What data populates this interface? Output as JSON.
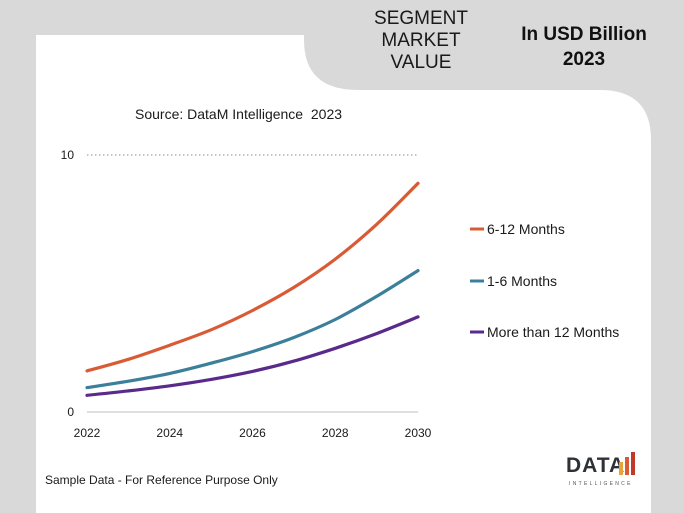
{
  "header": {
    "title_lines": [
      "SEGMENT",
      "MARKET",
      "VALUE"
    ],
    "unit_lines": [
      "In USD Billion",
      "2023"
    ]
  },
  "source_text": "Source: DataM Intelligence  2023",
  "footer_note": "Sample Data - For Reference Purpose Only",
  "logo": {
    "word": "DATA",
    "sub": "INTELLIGENCE"
  },
  "colors": {
    "series_6_12": "#d95b35",
    "series_1_6": "#3c7f9b",
    "series_12_plus": "#5a2a8a",
    "logo_bars": [
      "#e8a33b",
      "#d95b35",
      "#c0392b"
    ]
  },
  "chart_data": {
    "type": "line",
    "title": "",
    "xlabel": "",
    "ylabel": "",
    "x": [
      2022,
      2023,
      2024,
      2025,
      2026,
      2027,
      2028,
      2029,
      2030
    ],
    "x_ticks": [
      "2022",
      "2024",
      "2026",
      "2028",
      "2030"
    ],
    "y_ticks": [
      "0",
      "10"
    ],
    "ylim": [
      0,
      10
    ],
    "grid": "dotted line at 10",
    "legend_position": "right",
    "series": [
      {
        "name": "6-12 Months",
        "values": [
          1.6,
          2.05,
          2.6,
          3.2,
          3.95,
          4.85,
          5.95,
          7.3,
          8.9
        ]
      },
      {
        "name": "1-6 Months",
        "values": [
          0.95,
          1.2,
          1.5,
          1.9,
          2.35,
          2.9,
          3.6,
          4.5,
          5.5
        ]
      },
      {
        "name": "More than 12 Months",
        "values": [
          0.65,
          0.82,
          1.02,
          1.27,
          1.58,
          1.98,
          2.48,
          3.05,
          3.7
        ]
      }
    ]
  }
}
